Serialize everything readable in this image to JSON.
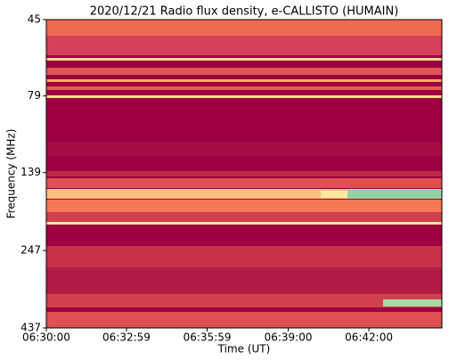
{
  "chart_data": {
    "type": "spectrogram",
    "title": "2020/12/21  Radio flux density, e-CALLISTO (HUMAIN)",
    "x_label": "Time (UT)",
    "y_label": "Frequency (MHz)",
    "xlim": [
      "06:30:00",
      "06:44:43"
    ],
    "xticks": [
      "06:30:00",
      "06:32:59",
      "06:35:59",
      "06:39:00",
      "06:42:00"
    ],
    "ylim": [
      45,
      437
    ],
    "y_log": true,
    "y_inverted": true,
    "yticks": [
      45,
      79,
      139,
      247,
      437
    ]
  }
}
